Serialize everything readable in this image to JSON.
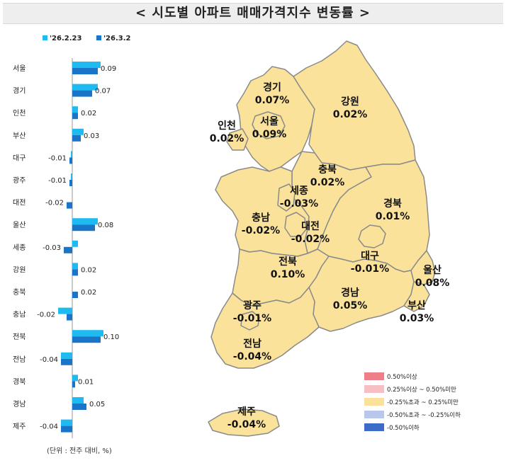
{
  "title": "< 시도별 아파트 매매가격지수 변동률 >",
  "unit_note": "(단위 : 전주 대비, %)",
  "colors": {
    "series_prev": "#1fbaf0",
    "series_curr": "#1a75c8",
    "map_fill": "#fbe29a",
    "map_stroke": "#8a8a8a"
  },
  "chart_data": {
    "type": "bar",
    "orientation": "horizontal",
    "categories": [
      "서울",
      "경기",
      "인천",
      "부산",
      "대구",
      "광주",
      "대전",
      "울산",
      "세종",
      "강원",
      "충북",
      "충남",
      "전북",
      "전남",
      "경북",
      "경남",
      "제주"
    ],
    "series": [
      {
        "name": "'26.2.23",
        "values": [
          0.1,
          0.09,
          0.02,
          0.04,
          -0.005,
          -0.005,
          0.0,
          0.09,
          0.02,
          0.02,
          0.0,
          -0.05,
          0.11,
          -0.04,
          0.02,
          0.04,
          -0.04
        ]
      },
      {
        "name": "'26.3.2",
        "values": [
          0.09,
          0.07,
          0.02,
          0.03,
          -0.01,
          -0.01,
          -0.02,
          0.08,
          -0.03,
          0.02,
          0.02,
          -0.02,
          0.1,
          -0.04,
          0.01,
          0.05,
          -0.04
        ]
      }
    ],
    "data_labels": [
      "0.09",
      "0.07",
      "0.02",
      "0.03",
      "-0.01",
      "-0.01",
      "-0.02",
      "0.08",
      "-0.03",
      "0.02",
      "0.02",
      "-0.02",
      "0.10",
      "-0.04",
      "0.01",
      "0.05",
      "-0.04"
    ],
    "legend_position": "top"
  },
  "map": {
    "regions": [
      {
        "name": "경기",
        "value": "0.07%"
      },
      {
        "name": "강원",
        "value": "0.02%"
      },
      {
        "name": "인천",
        "value": "0.02%"
      },
      {
        "name": "서울",
        "value": "0.09%"
      },
      {
        "name": "충북",
        "value": "0.02%"
      },
      {
        "name": "세종",
        "value": "-0.03%"
      },
      {
        "name": "경북",
        "value": "0.01%"
      },
      {
        "name": "충남",
        "value": "-0.02%"
      },
      {
        "name": "대전",
        "value": "-0.02%"
      },
      {
        "name": "대구",
        "value": "-0.01%"
      },
      {
        "name": "울산",
        "value": "0.08%"
      },
      {
        "name": "전북",
        "value": "0.10%"
      },
      {
        "name": "광주",
        "value": "-0.01%"
      },
      {
        "name": "경남",
        "value": "0.05%"
      },
      {
        "name": "부산",
        "value": "0.03%"
      },
      {
        "name": "전남",
        "value": "-0.04%"
      },
      {
        "name": "제주",
        "value": "-0.04%"
      }
    ],
    "legend": [
      {
        "label": "0.50%이상",
        "color": "#ef7f86"
      },
      {
        "label": "0.25%이상 ~ 0.50%미만",
        "color": "#f7bfc4"
      },
      {
        "label": "-0.25%초과 ~ 0.25%미만",
        "color": "#fbe29a"
      },
      {
        "label": "-0.50%초과 ~ -0.25%이하",
        "color": "#b9c7ec"
      },
      {
        "label": "-0.50%이하",
        "color": "#3e6ac8"
      }
    ]
  }
}
